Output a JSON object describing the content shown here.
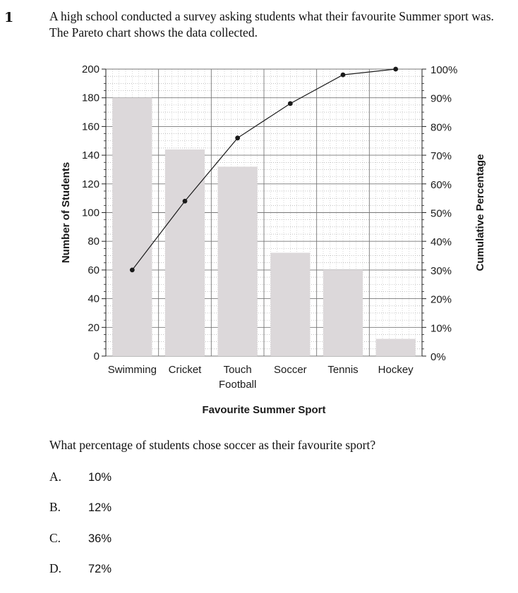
{
  "question_number": "1",
  "intro": "A high school conducted a survey asking students what their favourite Summer sport was. The Pareto chart shows the data collected.",
  "question": "What percentage of students chose soccer as their favourite sport?",
  "options": [
    {
      "letter": "A.",
      "value": "10%"
    },
    {
      "letter": "B.",
      "value": "12%"
    },
    {
      "letter": "C.",
      "value": "36%"
    },
    {
      "letter": "D.",
      "value": "72%"
    }
  ],
  "chart_data": {
    "type": "bar",
    "title": "",
    "xlabel": "Favourite Summer Sport",
    "ylabel": "Number of Students",
    "y2label": "Cumulative Percentage",
    "categories": [
      [
        "Swimming"
      ],
      [
        "Cricket"
      ],
      [
        "Touch",
        "Football"
      ],
      [
        "Soccer"
      ],
      [
        "Tennis"
      ],
      [
        "Hockey"
      ]
    ],
    "values": [
      180,
      144,
      132,
      72,
      60,
      12
    ],
    "cumulative_percent": [
      30,
      54,
      76,
      88,
      98,
      100
    ],
    "ylim": [
      0,
      200
    ],
    "y_ticks": [
      "0",
      "20",
      "40",
      "60",
      "80",
      "100",
      "120",
      "140",
      "160",
      "180",
      "200"
    ],
    "y2lim": [
      0,
      100
    ],
    "y2_ticks": [
      "0%",
      "10%",
      "20%",
      "30%",
      "40%",
      "50%",
      "60%",
      "70%",
      "80%",
      "90%",
      "100%"
    ],
    "grid": true,
    "bar_color": "#dcd8da",
    "line_color": "#1a1a1a"
  }
}
